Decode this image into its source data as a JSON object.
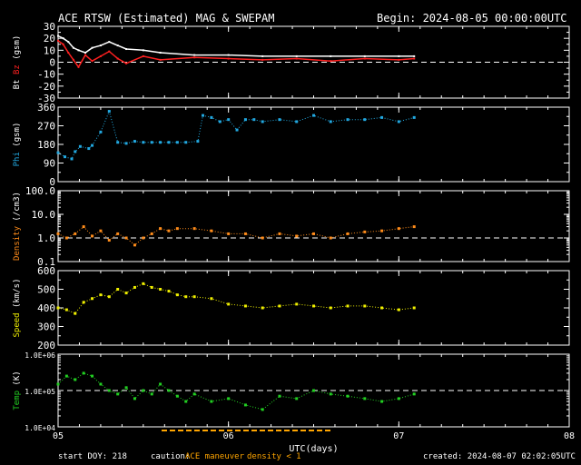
{
  "header": {
    "title": "ACE RTSW (Estimated) MAG & SWEPAM",
    "begin": "Begin: 2024-08-05 00:00:00UTC"
  },
  "footer": {
    "start_doy": "start DOY: 218",
    "caution_label": "caution:",
    "caution_maneuver": "ACE maneuver",
    "caution_density": "density < 1",
    "created": "created: 2024-08-07 02:02:05UTC"
  },
  "colors": {
    "background": "#000000",
    "axes": "#ffffff",
    "bt": "#ffffff",
    "bz": "#ff2020",
    "phi": "#22a8e0",
    "density": "#ff8c1a",
    "speed": "#f0f000",
    "temp": "#22d022",
    "maneuver": "#ffa500"
  },
  "chart_data": [
    {
      "type": "line",
      "ylabel_prefix": "Bt",
      "ylabel_series": "Bz",
      "ylabel_unit": "(gsm)",
      "ylim": [
        -30,
        30
      ],
      "yticks": [
        "30",
        "20",
        "10",
        "0",
        "-10",
        "-20",
        "-30"
      ],
      "xlim": [
        5,
        8
      ],
      "reference_lines": [
        0
      ],
      "series": [
        {
          "name": "Bt",
          "color": "#ffffff",
          "x": [
            5.0,
            5.03,
            5.06,
            5.09,
            5.12,
            5.16,
            5.2,
            5.25,
            5.3,
            5.35,
            5.4,
            5.5,
            5.6,
            5.8,
            6.0,
            6.2,
            6.4,
            6.6,
            6.8,
            7.0,
            7.09
          ],
          "y": [
            22,
            20,
            17,
            12,
            10,
            8,
            12,
            14,
            17,
            14,
            11,
            10,
            8,
            6,
            6,
            5,
            5,
            5,
            5,
            5,
            5
          ]
        },
        {
          "name": "Bz",
          "color": "#ff2020",
          "x": [
            5.0,
            5.03,
            5.06,
            5.09,
            5.12,
            5.16,
            5.2,
            5.25,
            5.3,
            5.35,
            5.4,
            5.5,
            5.6,
            5.8,
            6.0,
            6.2,
            6.4,
            6.6,
            6.8,
            7.0,
            7.09
          ],
          "y": [
            18,
            15,
            8,
            2,
            -4,
            6,
            1,
            5,
            9,
            3,
            -1,
            5,
            2,
            4,
            3,
            2,
            3,
            1,
            3,
            2,
            3
          ]
        }
      ]
    },
    {
      "type": "scatter",
      "ylabel": "Phi",
      "ylabel_unit": "(gsm)",
      "ylim": [
        0,
        360
      ],
      "yticks": [
        "360",
        "270",
        "180",
        "90",
        "0"
      ],
      "xlim": [
        5,
        8
      ],
      "series": [
        {
          "name": "Phi",
          "color": "#22a8e0",
          "x": [
            5.0,
            5.04,
            5.08,
            5.1,
            5.13,
            5.18,
            5.2,
            5.25,
            5.3,
            5.35,
            5.4,
            5.45,
            5.5,
            5.55,
            5.6,
            5.65,
            5.7,
            5.75,
            5.82,
            5.85,
            5.9,
            5.95,
            6.0,
            6.05,
            6.1,
            6.15,
            6.2,
            6.3,
            6.4,
            6.5,
            6.6,
            6.7,
            6.8,
            6.9,
            7.0,
            7.09
          ],
          "y": [
            140,
            120,
            110,
            145,
            170,
            160,
            175,
            240,
            340,
            190,
            185,
            195,
            190,
            190,
            190,
            190,
            190,
            190,
            195,
            320,
            310,
            290,
            300,
            250,
            300,
            300,
            290,
            300,
            290,
            320,
            290,
            300,
            300,
            310,
            290,
            310
          ]
        }
      ]
    },
    {
      "type": "scatter",
      "ylabel": "Density",
      "ylabel_unit": "(/cm3)",
      "yscale": "log",
      "ylim": [
        0.1,
        100
      ],
      "yticks": [
        "100.0",
        "10.0",
        "1.0",
        "0.1"
      ],
      "xlim": [
        5,
        8
      ],
      "reference_lines": [
        1
      ],
      "series": [
        {
          "name": "Density",
          "color": "#ff8c1a",
          "x": [
            5.0,
            5.05,
            5.1,
            5.15,
            5.2,
            5.25,
            5.3,
            5.35,
            5.4,
            5.45,
            5.5,
            5.55,
            5.6,
            5.65,
            5.7,
            5.8,
            5.9,
            6.0,
            6.1,
            6.2,
            6.3,
            6.4,
            6.5,
            6.6,
            6.7,
            6.8,
            6.9,
            7.0,
            7.09
          ],
          "y": [
            1.5,
            1.0,
            1.5,
            3.0,
            1.2,
            2.0,
            0.8,
            1.5,
            1.0,
            0.5,
            1.0,
            1.5,
            2.5,
            2.0,
            2.5,
            2.5,
            2.0,
            1.5,
            1.5,
            1.0,
            1.5,
            1.2,
            1.5,
            1.0,
            1.5,
            1.8,
            2.0,
            2.5,
            3.0
          ]
        }
      ]
    },
    {
      "type": "scatter",
      "ylabel": "Speed",
      "ylabel_unit": "(km/s)",
      "ylim": [
        200,
        600
      ],
      "yticks": [
        "600",
        "500",
        "400",
        "300",
        "200"
      ],
      "xlim": [
        5,
        8
      ],
      "series": [
        {
          "name": "Speed",
          "color": "#f0f000",
          "x": [
            5.0,
            5.05,
            5.1,
            5.15,
            5.2,
            5.25,
            5.3,
            5.35,
            5.4,
            5.45,
            5.5,
            5.55,
            5.6,
            5.65,
            5.7,
            5.75,
            5.8,
            5.9,
            6.0,
            6.1,
            6.2,
            6.3,
            6.4,
            6.5,
            6.6,
            6.7,
            6.8,
            6.9,
            7.0,
            7.09
          ],
          "y": [
            400,
            390,
            370,
            430,
            450,
            470,
            460,
            500,
            480,
            510,
            530,
            510,
            500,
            490,
            470,
            460,
            460,
            450,
            420,
            410,
            400,
            410,
            420,
            410,
            400,
            410,
            410,
            400,
            390,
            400
          ]
        }
      ]
    },
    {
      "type": "scatter",
      "ylabel": "Temp",
      "ylabel_unit": "(K)",
      "yscale": "log",
      "ylim": [
        10000,
        1000000
      ],
      "yticks": [
        "1.0E+06",
        "1.0E+05",
        "1.0E+04"
      ],
      "xlim": [
        5,
        8
      ],
      "reference_lines": [
        100000
      ],
      "xticks": [
        "05",
        "06",
        "07",
        "08"
      ],
      "xlabel": "UTC(days)",
      "series": [
        {
          "name": "Temp",
          "color": "#22d022",
          "x": [
            5.0,
            5.05,
            5.1,
            5.15,
            5.2,
            5.25,
            5.3,
            5.35,
            5.4,
            5.45,
            5.5,
            5.55,
            5.6,
            5.65,
            5.7,
            5.75,
            5.8,
            5.9,
            6.0,
            6.1,
            6.2,
            6.3,
            6.4,
            6.5,
            6.6,
            6.7,
            6.8,
            6.9,
            7.0,
            7.09
          ],
          "y": [
            150000,
            250000,
            200000,
            300000,
            250000,
            150000,
            100000,
            80000,
            120000,
            60000,
            100000,
            80000,
            150000,
            100000,
            70000,
            50000,
            80000,
            50000,
            60000,
            40000,
            30000,
            70000,
            60000,
            100000,
            80000,
            70000,
            60000,
            50000,
            60000,
            80000
          ]
        }
      ]
    }
  ]
}
